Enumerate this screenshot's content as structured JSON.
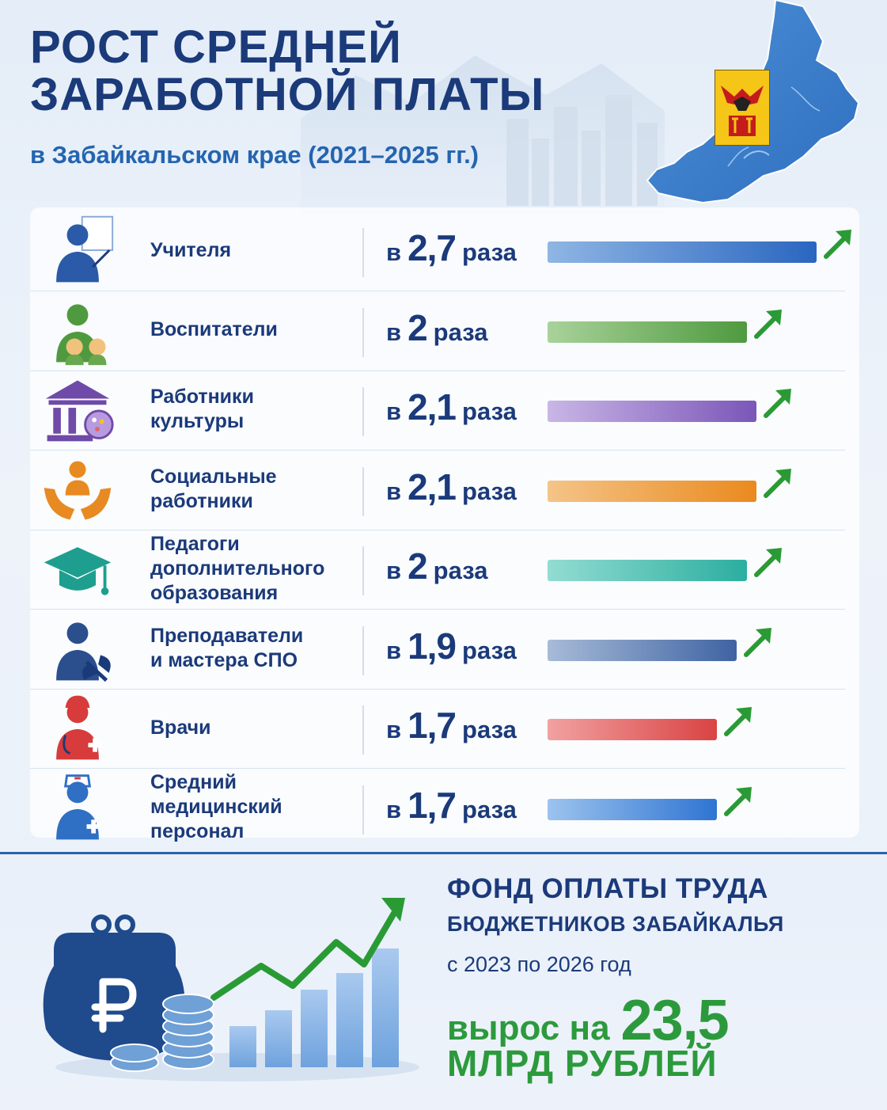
{
  "header": {
    "title": "РОСТ СРЕДНЕЙ ЗАРАБОТНОЙ ПЛАТЫ",
    "subtitle": "в Забайкальском крае (2021–2025 гг.)"
  },
  "chart_data": {
    "type": "bar",
    "categories": [
      "Учителя",
      "Воспитатели",
      "Работники\nкультуры",
      "Социальные\nработники",
      "Педагоги\nдополнительного\nобразования",
      "Преподаватели\nи мастера СПО",
      "Врачи",
      "Средний медицинский\nперсонал"
    ],
    "values": [
      2.7,
      2.0,
      2.1,
      2.1,
      2.0,
      1.9,
      1.7,
      1.7
    ],
    "value_labels": [
      {
        "pre": "в",
        "num": "2,7",
        "post": "раза"
      },
      {
        "pre": "в",
        "num": "2",
        "post": "раза"
      },
      {
        "pre": "в",
        "num": "2,1",
        "post": "раза"
      },
      {
        "pre": "в",
        "num": "2,1",
        "post": "раза"
      },
      {
        "pre": "в",
        "num": "2",
        "post": "раза"
      },
      {
        "pre": "в",
        "num": "1,9",
        "post": "раза"
      },
      {
        "pre": "в",
        "num": "1,7",
        "post": "раза"
      },
      {
        "pre": "в",
        "num": "1,7",
        "post": "раза"
      }
    ],
    "bar_colors": [
      [
        "#8fb6e4",
        "#2a66c0"
      ],
      [
        "#a9d29a",
        "#4e9a3f"
      ],
      [
        "#c9b6e6",
        "#7b56b8"
      ],
      [
        "#f4c488",
        "#ea8a1e"
      ],
      [
        "#93dcd2",
        "#2bae9f"
      ],
      [
        "#a7bbd8",
        "#3f63a2"
      ],
      [
        "#f2a1a1",
        "#d94343"
      ],
      [
        "#9cc3ee",
        "#2f74d2"
      ]
    ],
    "icons": [
      "teacher-icon",
      "educator-icon",
      "culture-icon",
      "social-worker-icon",
      "graduation-cap-icon",
      "instructor-icon",
      "doctor-icon",
      "nurse-icon"
    ],
    "icon_colors": [
      "#2b5aa8",
      "#4f9a3f",
      "#6f4aa8",
      "#e88a22",
      "#1e9e8e",
      "#2b4e8c",
      "#d73b3b",
      "#2f6fc4"
    ],
    "arrow_color": "#2a9a35",
    "xlim": [
      0,
      2.7
    ]
  },
  "fund": {
    "line1": "ФОНД ОПЛАТЫ ТРУДА",
    "line2": "БЮДЖЕТНИКОВ ЗАБАЙКАЛЬЯ",
    "line3": "с 2023 по 2026 год",
    "line4_text": "вырос на",
    "line4_num": "23,5",
    "line5": "МЛРД РУБЛЕЙ",
    "growth_bars": [
      1,
      1.4,
      1.9,
      2.3,
      2.9
    ],
    "icon": "ruble-wallet-icon"
  },
  "colors": {
    "brand": "#1b3a7a",
    "accent": "#2464b0",
    "green": "#2c9a3c"
  }
}
